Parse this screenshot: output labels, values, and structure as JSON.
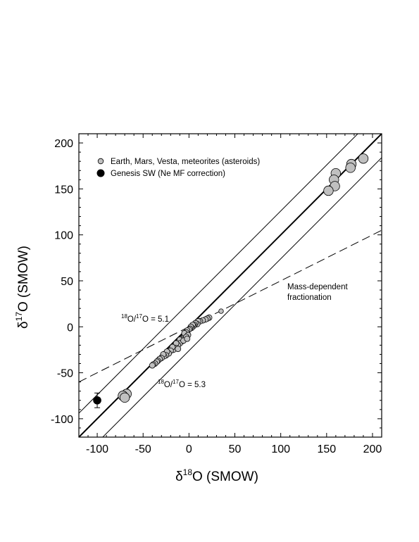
{
  "chart_data": {
    "type": "scatter",
    "xlabel": {
      "prefix": "δ",
      "sup": "18",
      "suffix": "O (SMOW)"
    },
    "ylabel": {
      "prefix": "δ",
      "sup": "17",
      "suffix": "O (SMOW)"
    },
    "xlim": [
      -120,
      210
    ],
    "ylim": [
      -120,
      210
    ],
    "x_ticks": [
      -100,
      -50,
      0,
      50,
      100,
      150,
      200
    ],
    "y_ticks": [
      -100,
      -50,
      0,
      50,
      100,
      150,
      200
    ],
    "x_tick_labels": [
      "-100",
      "-50",
      "0",
      "50",
      "100",
      "150",
      "200"
    ],
    "y_tick_labels": [
      "-100",
      "-50",
      "0",
      "50",
      "100",
      "150",
      "200"
    ],
    "grid": false,
    "legend_position": "top-left",
    "series": [
      {
        "name": "Earth, Mars, Vesta, meteorites (asteroids)",
        "color": "#c0c0c0",
        "marker": "circle",
        "points": [
          {
            "x": 190,
            "y": 183,
            "s": "large"
          },
          {
            "x": 177,
            "y": 177,
            "s": "large"
          },
          {
            "x": 176,
            "y": 173,
            "s": "large"
          },
          {
            "x": 160,
            "y": 167,
            "s": "large"
          },
          {
            "x": 158,
            "y": 160,
            "s": "large"
          },
          {
            "x": 159,
            "y": 153,
            "s": "large"
          },
          {
            "x": 152,
            "y": 148,
            "s": "large"
          },
          {
            "x": -68,
            "y": -73,
            "s": "large"
          },
          {
            "x": -72,
            "y": -75,
            "s": "large"
          },
          {
            "x": -70,
            "y": -77,
            "s": "large"
          },
          {
            "x": 35,
            "y": 17,
            "s": "small"
          },
          {
            "x": 22,
            "y": 10,
            "s": "medium"
          },
          {
            "x": 20,
            "y": 9,
            "s": "medium"
          },
          {
            "x": 18,
            "y": 8,
            "s": "medium"
          },
          {
            "x": 15,
            "y": 7,
            "s": "medium"
          },
          {
            "x": 12,
            "y": 6,
            "s": "medium"
          },
          {
            "x": 10,
            "y": 6,
            "s": "medium"
          },
          {
            "x": 9,
            "y": 3,
            "s": "medium"
          },
          {
            "x": 7,
            "y": 4,
            "s": "medium"
          },
          {
            "x": 6,
            "y": 2,
            "s": "medium"
          },
          {
            "x": 5,
            "y": 1,
            "s": "medium"
          },
          {
            "x": 4,
            "y": 2,
            "s": "medium"
          },
          {
            "x": 3,
            "y": -1,
            "s": "medium"
          },
          {
            "x": 2,
            "y": 0,
            "s": "medium"
          },
          {
            "x": 1,
            "y": -2,
            "s": "medium"
          },
          {
            "x": 0,
            "y": -3,
            "s": "medium"
          },
          {
            "x": -2,
            "y": -4,
            "s": "medium"
          },
          {
            "x": -3,
            "y": -6,
            "s": "medium"
          },
          {
            "x": -4,
            "y": -8,
            "s": "medium"
          },
          {
            "x": -5,
            "y": -10,
            "s": "medium"
          },
          {
            "x": -6,
            "y": -12,
            "s": "medium"
          },
          {
            "x": -7,
            "y": -14,
            "s": "medium"
          },
          {
            "x": -8,
            "y": -16,
            "s": "medium"
          },
          {
            "x": -10,
            "y": -14,
            "s": "medium"
          },
          {
            "x": -10,
            "y": -18,
            "s": "medium"
          },
          {
            "x": -12,
            "y": -20,
            "s": "medium"
          },
          {
            "x": -14,
            "y": -18,
            "s": "medium"
          },
          {
            "x": -15,
            "y": -23,
            "s": "medium"
          },
          {
            "x": -17,
            "y": -25,
            "s": "medium"
          },
          {
            "x": -18,
            "y": -22,
            "s": "medium"
          },
          {
            "x": -20,
            "y": -26,
            "s": "medium"
          },
          {
            "x": -22,
            "y": -29,
            "s": "medium"
          },
          {
            "x": -24,
            "y": -27,
            "s": "medium"
          },
          {
            "x": -25,
            "y": -31,
            "s": "medium"
          },
          {
            "x": -27,
            "y": -32,
            "s": "medium"
          },
          {
            "x": -28,
            "y": -30,
            "s": "medium"
          },
          {
            "x": -30,
            "y": -34,
            "s": "medium"
          },
          {
            "x": -32,
            "y": -35,
            "s": "medium"
          },
          {
            "x": -34,
            "y": -37,
            "s": "medium"
          },
          {
            "x": -35,
            "y": -38,
            "s": "medium"
          },
          {
            "x": -37,
            "y": -40,
            "s": "medium"
          },
          {
            "x": -39,
            "y": -41,
            "s": "medium"
          },
          {
            "x": -40,
            "y": -42,
            "s": "medium"
          },
          {
            "x": -5,
            "y": -7,
            "s": "medium"
          },
          {
            "x": -1,
            "y": -9,
            "s": "medium"
          },
          {
            "x": -3,
            "y": -11,
            "s": "medium"
          },
          {
            "x": -6,
            "y": -15,
            "s": "medium"
          },
          {
            "x": -12,
            "y": -24,
            "s": "medium"
          },
          {
            "x": -2,
            "y": -13,
            "s": "medium"
          }
        ]
      },
      {
        "name": "Genesis SW (Ne MF correction)",
        "color": "#000000",
        "marker": "circle",
        "points": [
          {
            "x": -100,
            "y": -80,
            "s": "large",
            "xerr": 3,
            "yerr": 8
          }
        ]
      }
    ],
    "lines": [
      {
        "type": "slope1",
        "intercept": 0,
        "style": "solid",
        "width": 2
      },
      {
        "type": "slope1",
        "intercept": 26,
        "style": "solid",
        "width": 1
      },
      {
        "type": "slope1",
        "intercept": -26,
        "style": "solid",
        "width": 1
      },
      {
        "type": "mass-dependent",
        "slope": 0.5,
        "intercept": 0,
        "style": "dashed",
        "width": 1
      }
    ],
    "annotations": [
      {
        "id": "mdf1",
        "text": "Mass-dependent"
      },
      {
        "id": "mdf2",
        "text": "fractionation"
      },
      {
        "id": "r51",
        "sup": "18",
        "text": "O/",
        "sup2": "17",
        "text2": "O = 5.1"
      },
      {
        "id": "r53",
        "sup": "18",
        "text": "O/",
        "sup2": "17",
        "text2": "O = 5.3"
      }
    ]
  }
}
